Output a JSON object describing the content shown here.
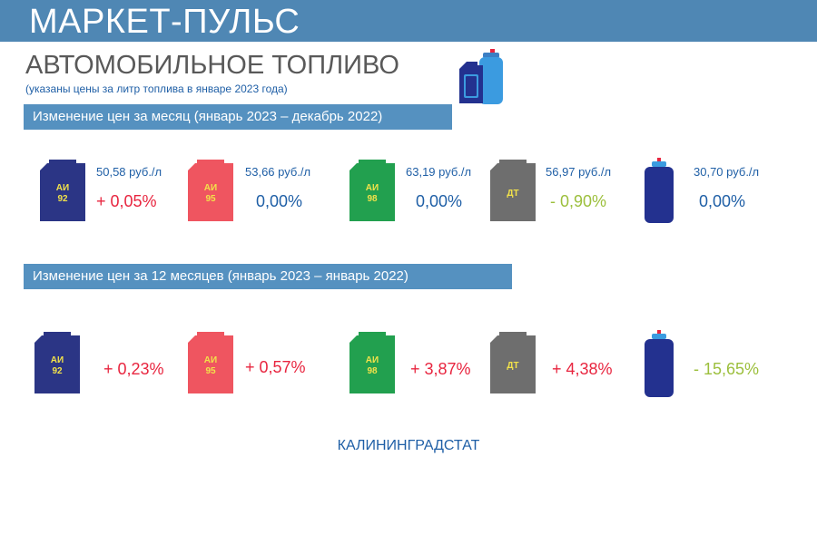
{
  "header": {
    "brand": "МАРКЕТ-ПУЛЬС"
  },
  "title": "АВТОМОБИЛЬНОЕ ТОПЛИВО",
  "subtitle": "(указаны цены за литр топлива в январе 2023 года)",
  "colors": {
    "ai92": "#2b3585",
    "ai95": "#ef5560",
    "ai98": "#22a04f",
    "dt": "#6e6e6e",
    "gas": "#23318f",
    "increase": "#e8253f",
    "neutral": "#1f5fa6",
    "decrease": "#9cbf3c"
  },
  "monthly": {
    "heading": "Изменение цен за месяц (январь 2023 – декабрь 2022)",
    "items": [
      {
        "icon": "fuel-canister-icon",
        "label_top": "АИ",
        "label_bottom": "92",
        "price": "50,58 руб./л",
        "change": "+ 0,05%"
      },
      {
        "icon": "fuel-canister-icon",
        "label_top": "АИ",
        "label_bottom": "95",
        "price": "53,66 руб./л",
        "change": "0,00%"
      },
      {
        "icon": "fuel-canister-icon",
        "label_top": "АИ",
        "label_bottom": "98",
        "price": "63,19 руб./л",
        "change": "0,00%"
      },
      {
        "icon": "fuel-canister-icon",
        "label_top": "ДТ",
        "label_bottom": "",
        "price": "56,97 руб./л",
        "change": "- 0,90%"
      },
      {
        "icon": "gas-cylinder-icon",
        "label_top": "",
        "label_bottom": "",
        "price": "30,70 руб./л",
        "change": "0,00%"
      }
    ]
  },
  "yearly": {
    "heading": "Изменение цен за 12 месяцев (январь 2023 – январь 2022)",
    "items": [
      {
        "icon": "fuel-canister-icon",
        "label_top": "АИ",
        "label_bottom": "92",
        "change": "+ 0,23%"
      },
      {
        "icon": "fuel-canister-icon",
        "label_top": "АИ",
        "label_bottom": "95",
        "change": "+ 0,57%"
      },
      {
        "icon": "fuel-canister-icon",
        "label_top": "АИ",
        "label_bottom": "98",
        "change": "+ 3,87%"
      },
      {
        "icon": "fuel-canister-icon",
        "label_top": "ДТ",
        "label_bottom": "",
        "change": "+ 4,38%"
      },
      {
        "icon": "gas-cylinder-icon",
        "label_top": "",
        "label_bottom": "",
        "change": "- 15,65%"
      }
    ]
  },
  "footer": "КАЛИНИНГРАДСТАТ"
}
